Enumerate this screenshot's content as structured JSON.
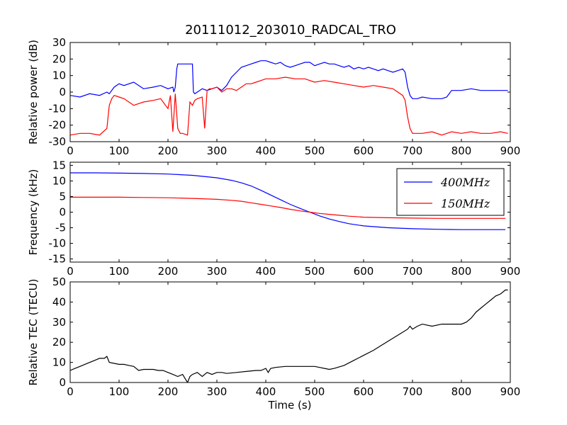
{
  "title": "20111012_203010_RADCAL_TRO",
  "xlabel": "Time (s)",
  "chart_data": [
    {
      "type": "line",
      "ylabel": "Relative power (dB)",
      "xlim": [
        0,
        900
      ],
      "ylim": [
        -30,
        30
      ],
      "xticks": [
        0,
        100,
        200,
        300,
        400,
        500,
        600,
        700,
        800,
        900
      ],
      "yticks": [
        -30,
        -20,
        -10,
        0,
        10,
        20,
        30
      ],
      "series": [
        {
          "color": "#0000ff",
          "x": [
            0,
            20,
            40,
            60,
            75,
            80,
            90,
            100,
            110,
            130,
            150,
            170,
            185,
            200,
            210,
            212,
            215,
            218,
            220,
            230,
            240,
            250,
            252,
            255,
            260,
            270,
            280,
            290,
            300,
            310,
            320,
            330,
            340,
            350,
            360,
            370,
            380,
            390,
            400,
            410,
            420,
            430,
            440,
            450,
            460,
            470,
            480,
            490,
            500,
            510,
            520,
            530,
            540,
            550,
            560,
            570,
            580,
            590,
            600,
            610,
            620,
            630,
            640,
            650,
            660,
            670,
            680,
            685,
            690,
            695,
            700,
            710,
            720,
            740,
            760,
            770,
            780,
            800,
            820,
            840,
            860,
            880,
            895
          ],
          "y": [
            -2,
            -3,
            -1,
            -2,
            0,
            -1,
            3,
            5,
            4,
            6,
            2,
            3,
            4,
            2,
            3,
            0,
            3,
            14,
            17,
            17,
            17,
            17,
            0,
            -1,
            0,
            2,
            1,
            2,
            3,
            1,
            4,
            9,
            12,
            15,
            16,
            17,
            18,
            19,
            19,
            18,
            17,
            18,
            16,
            15,
            16,
            17,
            18,
            18,
            16,
            17,
            18,
            17,
            17,
            16,
            15,
            16,
            14,
            15,
            14,
            15,
            14,
            13,
            14,
            13,
            12,
            13,
            14,
            12,
            3,
            -2,
            -4,
            -4,
            -3,
            -4,
            -4,
            -3,
            1,
            1,
            2,
            1,
            1,
            1,
            1
          ]
        },
        {
          "color": "#ff0000",
          "x": [
            0,
            20,
            40,
            60,
            75,
            80,
            85,
            90,
            100,
            110,
            130,
            140,
            150,
            170,
            185,
            200,
            205,
            210,
            215,
            220,
            225,
            230,
            240,
            245,
            250,
            255,
            260,
            270,
            275,
            280,
            285,
            290,
            300,
            310,
            320,
            330,
            340,
            350,
            360,
            370,
            380,
            390,
            400,
            420,
            440,
            460,
            480,
            500,
            520,
            540,
            560,
            580,
            600,
            620,
            640,
            660,
            670,
            680,
            685,
            690,
            695,
            700,
            720,
            740,
            760,
            780,
            800,
            820,
            840,
            860,
            880,
            895
          ],
          "y": [
            -26,
            -25,
            -25,
            -26,
            -22,
            -8,
            -4,
            -2,
            -3,
            -4,
            -8,
            -7,
            -6,
            -5,
            -4,
            -10,
            -2,
            -24,
            -1,
            -22,
            -25,
            -25,
            -26,
            -6,
            -8,
            -5,
            -4,
            -3,
            -22,
            1,
            2,
            2,
            3,
            0,
            2,
            2,
            1,
            3,
            5,
            5,
            6,
            7,
            8,
            8,
            9,
            8,
            8,
            6,
            7,
            6,
            5,
            4,
            3,
            4,
            3,
            2,
            0,
            -2,
            -5,
            -15,
            -22,
            -25,
            -25,
            -24,
            -26,
            -24,
            -25,
            -24,
            -25,
            -25,
            -24,
            -25
          ]
        }
      ]
    },
    {
      "type": "line",
      "ylabel": "Frequency (kHz)",
      "xlim": [
        0,
        900
      ],
      "ylim": [
        -16,
        16
      ],
      "xticks": [
        0,
        100,
        200,
        300,
        400,
        500,
        600,
        700,
        800,
        900
      ],
      "yticks": [
        -15,
        -10,
        -5,
        0,
        5,
        10,
        15
      ],
      "legend": {
        "position": "top-right"
      },
      "series": [
        {
          "name": "400MHz",
          "color": "#0000ff",
          "x": [
            0,
            50,
            100,
            150,
            200,
            250,
            300,
            330,
            350,
            370,
            390,
            410,
            430,
            450,
            470,
            490,
            510,
            530,
            550,
            570,
            600,
            650,
            700,
            750,
            800,
            850,
            890
          ],
          "y": [
            12.6,
            12.6,
            12.5,
            12.4,
            12.2,
            11.8,
            11.0,
            10.2,
            9.4,
            8.4,
            7.0,
            5.5,
            4.0,
            2.5,
            1.2,
            0.0,
            -1.2,
            -2.2,
            -3.0,
            -3.7,
            -4.4,
            -5.0,
            -5.3,
            -5.5,
            -5.6,
            -5.6,
            -5.6
          ]
        },
        {
          "name": "150MHz",
          "color": "#ff0000",
          "x": [
            0,
            50,
            100,
            150,
            200,
            250,
            300,
            330,
            350,
            370,
            390,
            410,
            430,
            450,
            470,
            490,
            510,
            530,
            550,
            570,
            600,
            650,
            700,
            750,
            800,
            850,
            890
          ],
          "y": [
            4.8,
            4.8,
            4.8,
            4.7,
            4.6,
            4.4,
            4.1,
            3.8,
            3.5,
            3.0,
            2.5,
            2.0,
            1.5,
            0.9,
            0.4,
            0.0,
            -0.4,
            -0.7,
            -1.0,
            -1.3,
            -1.6,
            -1.8,
            -1.9,
            -2.0,
            -2.0,
            -2.0,
            -2.0
          ]
        }
      ]
    },
    {
      "type": "line",
      "ylabel": "Relative TEC (TECU)",
      "xlim": [
        0,
        900
      ],
      "ylim": [
        0,
        50
      ],
      "xticks": [
        0,
        100,
        200,
        300,
        400,
        500,
        600,
        700,
        800,
        900
      ],
      "yticks": [
        0,
        10,
        20,
        30,
        40,
        50
      ],
      "series": [
        {
          "color": "#000000",
          "x": [
            0,
            10,
            20,
            30,
            40,
            50,
            60,
            70,
            75,
            80,
            90,
            100,
            110,
            120,
            130,
            140,
            150,
            160,
            170,
            180,
            190,
            200,
            210,
            220,
            230,
            235,
            240,
            245,
            250,
            260,
            270,
            280,
            290,
            300,
            310,
            320,
            340,
            360,
            380,
            390,
            400,
            405,
            410,
            420,
            440,
            460,
            480,
            500,
            510,
            520,
            530,
            540,
            560,
            580,
            600,
            620,
            640,
            660,
            680,
            690,
            695,
            700,
            710,
            720,
            740,
            760,
            780,
            790,
            800,
            810,
            820,
            830,
            840,
            850,
            860,
            870,
            880,
            890,
            895
          ],
          "y": [
            6,
            7,
            8,
            9,
            10,
            11,
            12,
            12,
            13,
            10,
            9.5,
            9,
            9,
            8.5,
            8,
            6,
            6.5,
            6.5,
            6.5,
            6,
            6,
            5,
            4,
            3,
            4,
            2,
            0,
            3,
            4,
            5,
            3,
            5,
            4,
            5,
            5,
            4.5,
            5,
            5.5,
            6,
            6,
            7,
            5,
            7,
            7.5,
            8,
            8,
            8,
            8,
            7.5,
            7,
            6.5,
            7,
            8.5,
            11,
            13.5,
            16,
            19,
            22,
            25,
            26.5,
            28,
            26.5,
            28,
            29,
            28,
            29,
            29,
            29,
            29,
            30,
            32,
            35,
            37,
            39,
            41,
            43,
            44,
            46,
            46
          ]
        }
      ]
    }
  ]
}
